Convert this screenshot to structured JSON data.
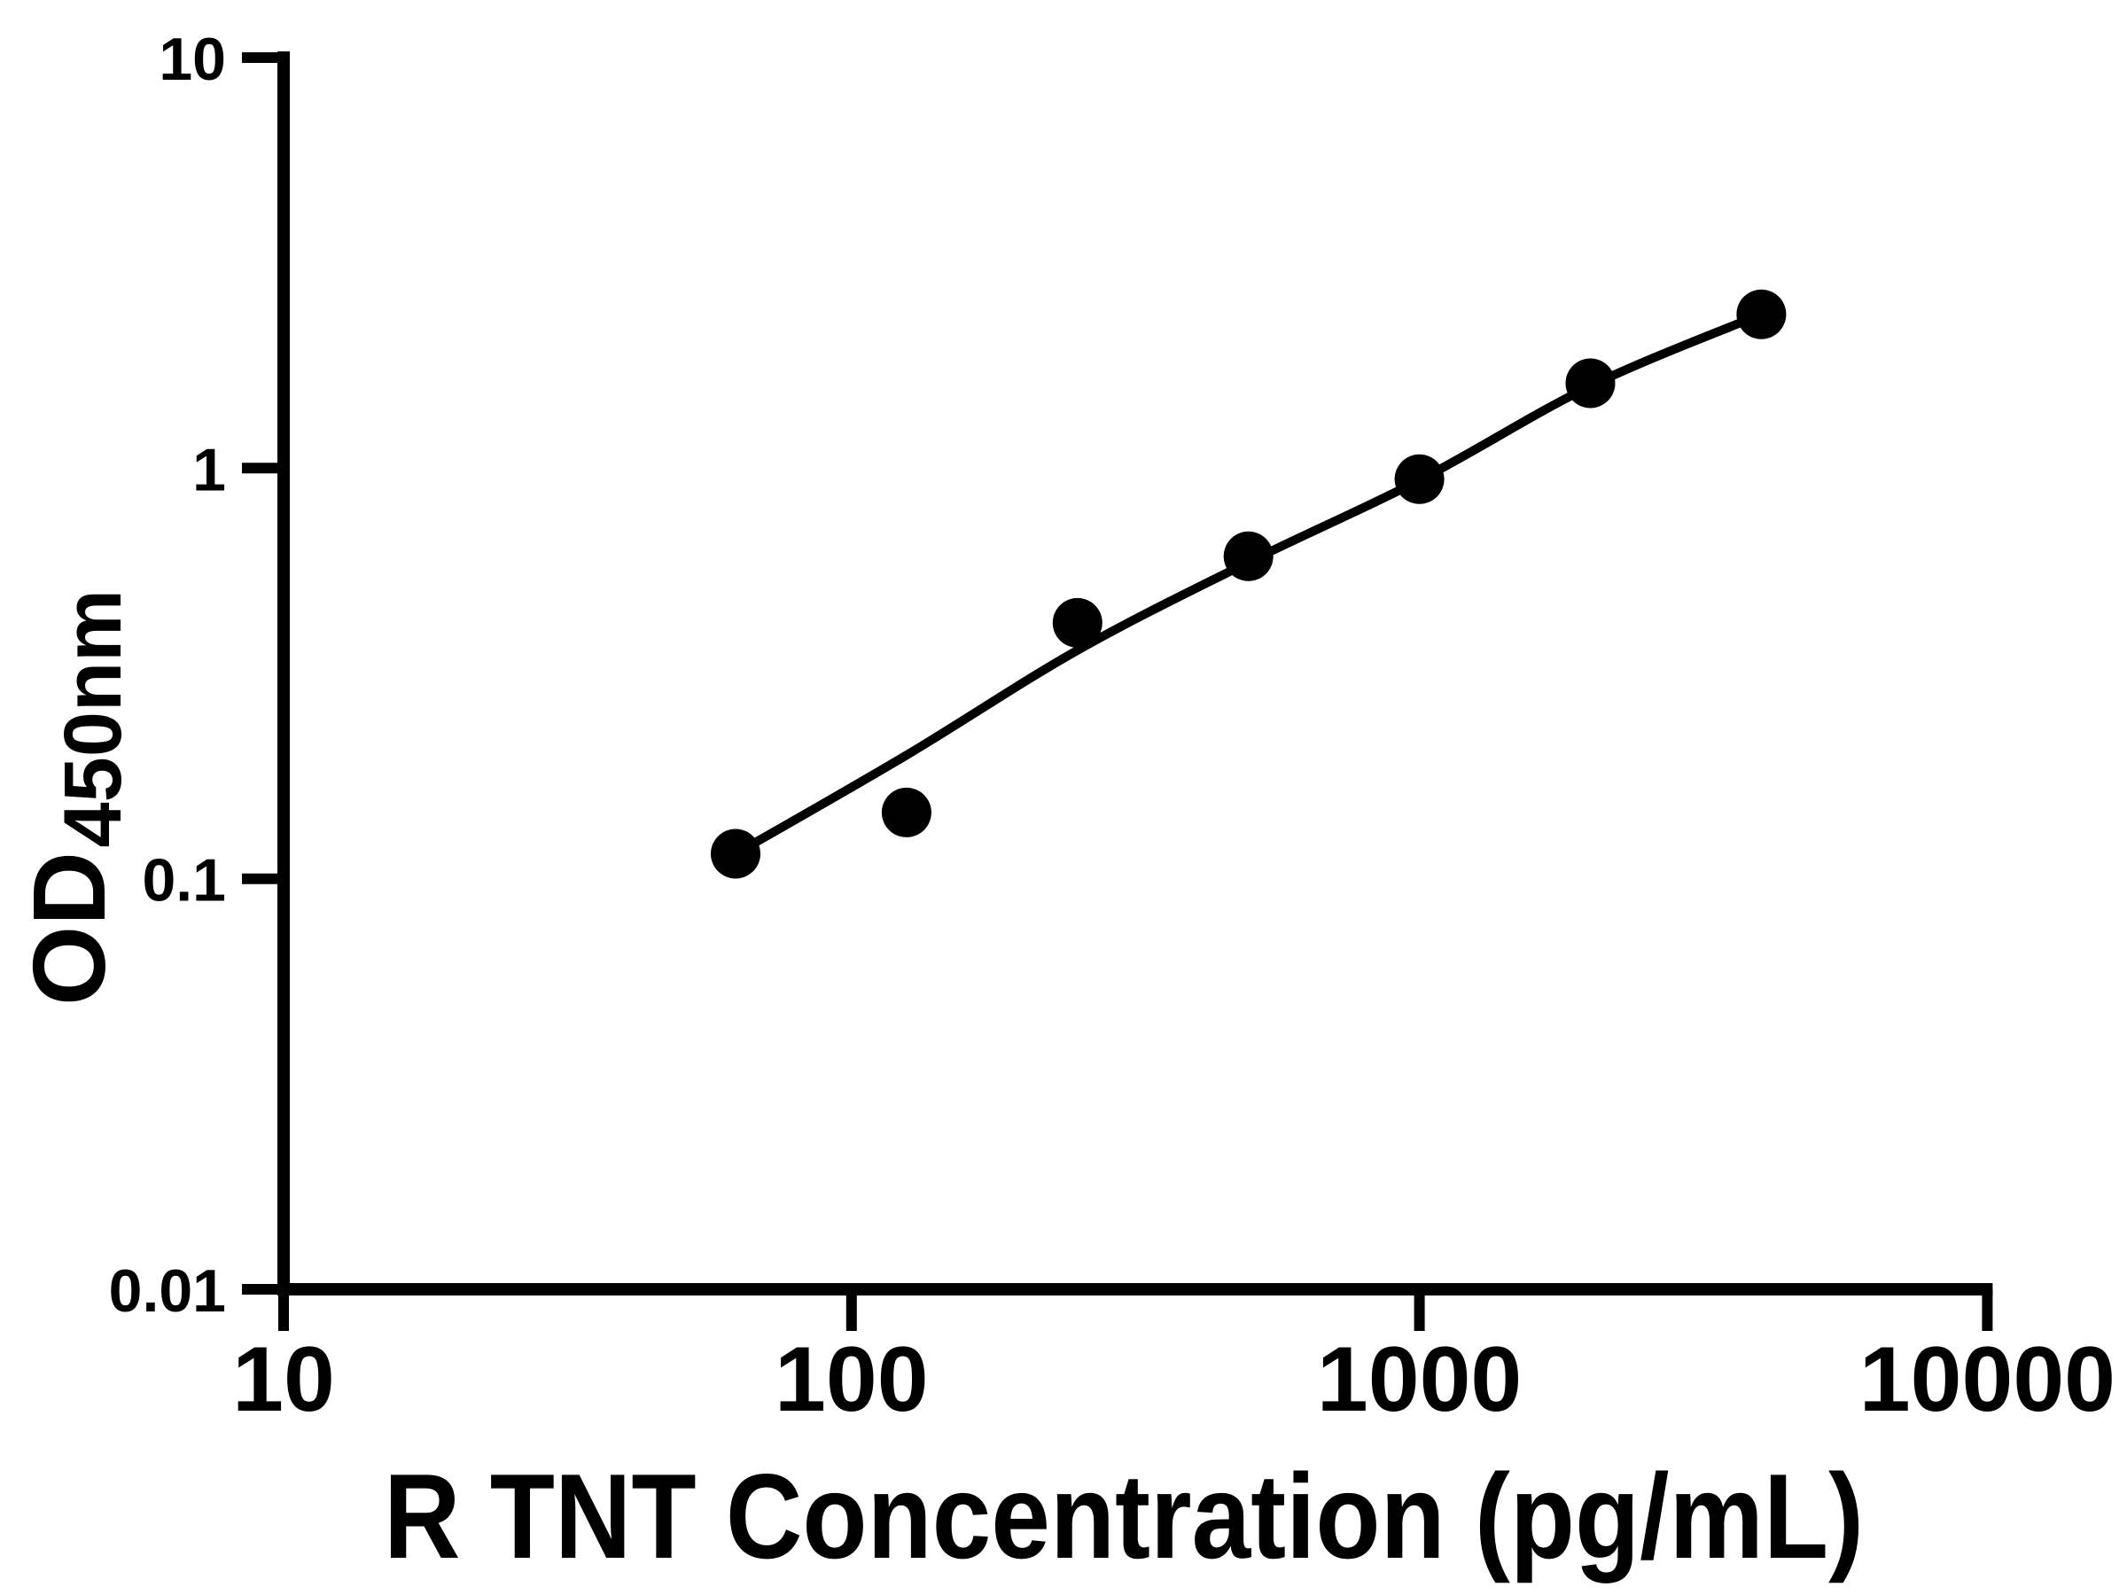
{
  "chart_data": {
    "type": "scatter",
    "title": "",
    "xlabel": "R TNT Concentration (pg/mL)",
    "ylabel": "OD",
    "ylabel_subscript": "450nm",
    "x_scale": "log",
    "y_scale": "log",
    "xlim": [
      10,
      10000
    ],
    "ylim": [
      0.01,
      10
    ],
    "x_ticks": [
      10,
      100,
      1000,
      10000
    ],
    "x_tick_labels": [
      "10",
      "100",
      "1000",
      "10000"
    ],
    "y_ticks": [
      0.01,
      0.1,
      1,
      10
    ],
    "y_tick_labels": [
      "0.01",
      "0.1",
      "1",
      "10"
    ],
    "grid": false,
    "legend": false,
    "background": "#ffffff",
    "axis_color": "#000000",
    "marker_color": "#000000",
    "curve_color": "#000000",
    "series": [
      {
        "name": "standard-points",
        "type": "scatter",
        "x": [
          62.5,
          125,
          250,
          500,
          1000,
          2000,
          4000
        ],
        "y": [
          0.115,
          0.145,
          0.42,
          0.61,
          0.94,
          1.61,
          2.37
        ]
      },
      {
        "name": "fit-curve",
        "type": "line",
        "x": [
          62.5,
          125,
          250,
          500,
          1000,
          2000,
          4000
        ],
        "y": [
          0.115,
          0.2,
          0.36,
          0.59,
          0.935,
          1.585,
          2.37
        ]
      }
    ]
  }
}
